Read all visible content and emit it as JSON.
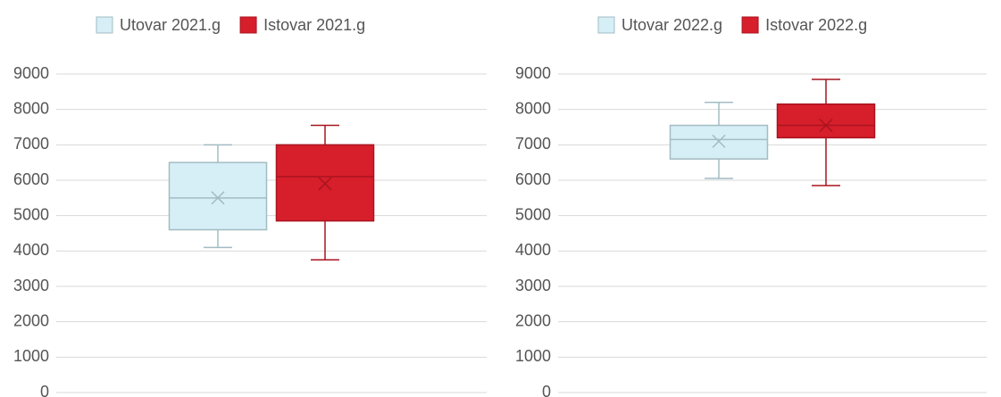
{
  "chart_data": [
    {
      "type": "box",
      "ylim": [
        0,
        9000
      ],
      "yticks": [
        0,
        1000,
        2000,
        3000,
        4000,
        5000,
        6000,
        7000,
        8000,
        9000
      ],
      "grid": true,
      "legend": "top",
      "series": [
        {
          "name": "Utovar 2021.g",
          "color": "#d6eef5",
          "stroke": "#a3bcc4",
          "min": 4100,
          "q1": 4600,
          "median": 5500,
          "q3": 6500,
          "max": 7000,
          "mean": 5500
        },
        {
          "name": "Istovar 2021.g",
          "color": "#d71e2b",
          "stroke": "#a8141f",
          "min": 3750,
          "q1": 4850,
          "median": 6100,
          "q3": 7000,
          "max": 7550,
          "mean": 5900
        }
      ]
    },
    {
      "type": "box",
      "ylim": [
        0,
        9000
      ],
      "yticks": [
        0,
        1000,
        2000,
        3000,
        4000,
        5000,
        6000,
        7000,
        8000,
        9000
      ],
      "grid": true,
      "legend": "top",
      "series": [
        {
          "name": "Utovar 2022.g",
          "color": "#d6eef5",
          "stroke": "#a3bcc4",
          "min": 6050,
          "q1": 6600,
          "median": 7150,
          "q3": 7550,
          "max": 8200,
          "mean": 7100
        },
        {
          "name": "Istovar 2022.g",
          "color": "#d71e2b",
          "stroke": "#a8141f",
          "min": 5850,
          "q1": 7200,
          "median": 7550,
          "q3": 8150,
          "max": 8850,
          "mean": 7550
        }
      ]
    }
  ]
}
